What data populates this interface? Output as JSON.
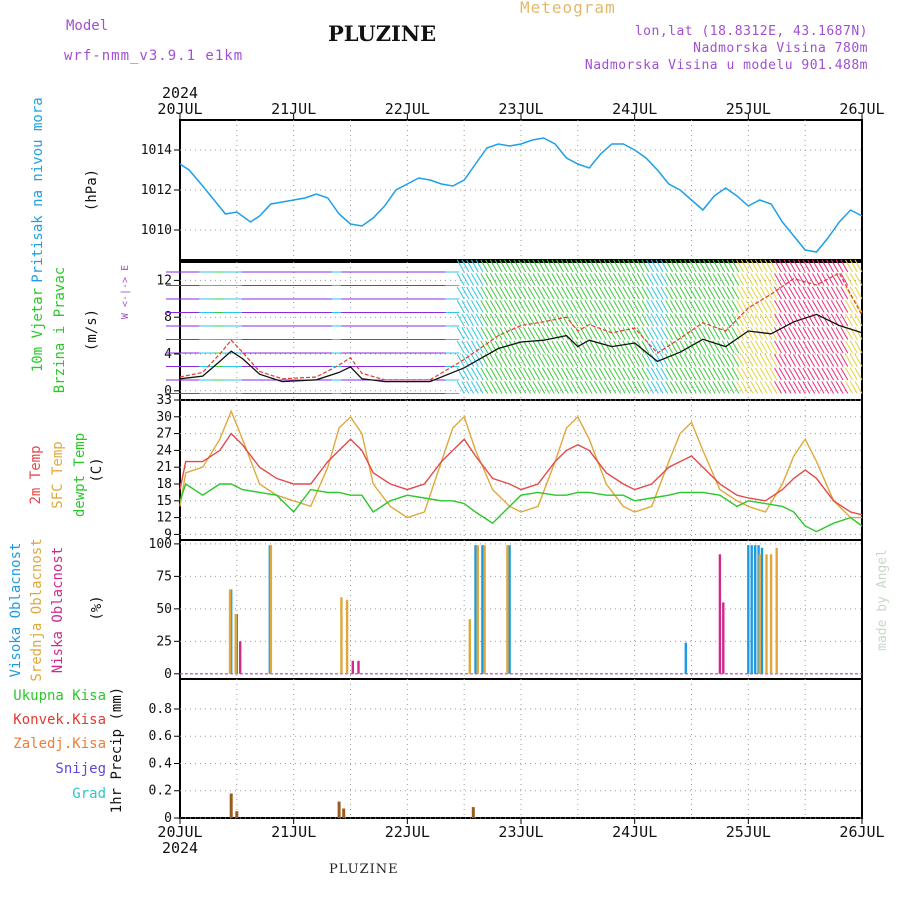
{
  "header": {
    "model_label": "Model",
    "model_name": "wrf-nmm_v3.9.1 e1km",
    "meteogram_title": "Meteogram",
    "station": "PLUZINE",
    "coords": "lon,lat (18.8312E, 43.1687N)",
    "elevation": "Nadmorska Visina 780m",
    "elevation_model": "Nadmorska Visina u modelu 901.488m"
  },
  "footer": {
    "station": "PLUZINE"
  },
  "credit": "made by Angel",
  "colors": {
    "pressure": "#1ea0e6",
    "wind_speed": "#111111",
    "gust": "#e5392f",
    "temp2m": "#e34a4a",
    "sfc_temp": "#e0a83c",
    "dewpoint": "#2ac82a",
    "cloud_high": "#1e9be0",
    "cloud_mid": "#e0a83c",
    "cloud_low": "#d02a8c",
    "precip_total": "#2ac82a",
    "precip_conv": "#e5392f",
    "precip_frozen": "#ee7d3a",
    "snow": "#5a48e0",
    "graupel": "#2ec7c7"
  },
  "x_axis": {
    "year": "2024",
    "ticks": [
      "20JUL",
      "21JUL",
      "22JUL",
      "23JUL",
      "24JUL",
      "25JUL",
      "26JUL"
    ]
  },
  "chart_data": [
    {
      "type": "line",
      "title": "",
      "ylabel": "Pritisak na nivou mora",
      "unit": "(hPa)",
      "ylim": [
        1008.5,
        1015.5
      ],
      "yticks": [
        1010,
        1012,
        1014
      ],
      "grid": true,
      "x_days": [
        0,
        0.08,
        0.2,
        0.3,
        0.4,
        0.5,
        0.62,
        0.7,
        0.8,
        0.9,
        1.0,
        1.1,
        1.2,
        1.3,
        1.4,
        1.5,
        1.6,
        1.7,
        1.8,
        1.9,
        2.0,
        2.1,
        2.2,
        2.3,
        2.4,
        2.5,
        2.6,
        2.7,
        2.8,
        2.9,
        3.0,
        3.1,
        3.2,
        3.3,
        3.4,
        3.5,
        3.6,
        3.7,
        3.8,
        3.9,
        4.0,
        4.1,
        4.2,
        4.3,
        4.4,
        4.5,
        4.6,
        4.7,
        4.8,
        4.9,
        5.0,
        5.1,
        5.2,
        5.3,
        5.4,
        5.5,
        5.6,
        5.7,
        5.8,
        5.9,
        6.0
      ],
      "series": [
        {
          "values": [
            1013.3,
            1013.0,
            1012.2,
            1011.5,
            1010.8,
            1010.9,
            1010.4,
            1010.7,
            1011.3,
            1011.4,
            1011.5,
            1011.6,
            1011.8,
            1011.6,
            1010.8,
            1010.3,
            1010.2,
            1010.6,
            1011.2,
            1012.0,
            1012.3,
            1012.6,
            1012.5,
            1012.3,
            1012.2,
            1012.5,
            1013.3,
            1014.1,
            1014.3,
            1014.2,
            1014.3,
            1014.5,
            1014.6,
            1014.3,
            1013.6,
            1013.3,
            1013.1,
            1013.8,
            1014.3,
            1014.3,
            1014.0,
            1013.6,
            1013.0,
            1012.3,
            1012.0,
            1011.5,
            1011.0,
            1011.7,
            1012.1,
            1011.7,
            1011.2,
            1011.5,
            1011.3,
            1010.4,
            1009.7,
            1009.0,
            1008.9,
            1009.6,
            1010.4,
            1011.0,
            1010.7
          ]
        }
      ]
    },
    {
      "type": "line",
      "title": "",
      "ylabel": "10m Vjetar Brzina i Pravac",
      "unit": "(m/s)",
      "ylim": [
        -1,
        14
      ],
      "yticks": [
        0,
        4,
        8,
        12
      ],
      "grid": true,
      "x_days": [
        0,
        0.2,
        0.35,
        0.45,
        0.55,
        0.7,
        0.9,
        1.2,
        1.4,
        1.5,
        1.6,
        1.8,
        2.2,
        2.5,
        2.8,
        3.0,
        3.2,
        3.4,
        3.5,
        3.6,
        3.8,
        4.0,
        4.2,
        4.4,
        4.6,
        4.8,
        5.0,
        5.2,
        5.4,
        5.6,
        5.8,
        6.0
      ],
      "series": [
        {
          "name": "",
          "values": [
            1.3,
            1.6,
            3.2,
            4.3,
            3.5,
            1.8,
            1.0,
            1.2,
            2.0,
            2.6,
            1.3,
            1.0,
            1.0,
            2.5,
            4.6,
            5.3,
            5.5,
            6.0,
            4.8,
            5.5,
            4.8,
            5.2,
            3.2,
            4.2,
            5.6,
            4.8,
            6.5,
            6.2,
            7.5,
            8.3,
            7.1,
            6.3
          ]
        },
        {
          "name": "",
          "values": [
            1.5,
            2.0,
            4.0,
            5.5,
            4.2,
            2.1,
            1.3,
            1.5,
            2.8,
            3.6,
            1.9,
            1.2,
            1.2,
            3.4,
            6.0,
            7.1,
            7.5,
            8.0,
            6.5,
            7.2,
            6.3,
            6.8,
            4.1,
            5.7,
            7.4,
            6.5,
            9.0,
            10.5,
            12.2,
            11.5,
            12.8,
            8.2
          ]
        }
      ]
    },
    {
      "type": "line",
      "title": "",
      "ylabel": "2m Temp / SFC Temp / dewpt Temp",
      "unit": "(C)",
      "ylim": [
        8,
        33
      ],
      "yticks": [
        9,
        12,
        15,
        18,
        21,
        24,
        27,
        30,
        33
      ],
      "grid": true,
      "x_days": [
        0,
        0.05,
        0.2,
        0.35,
        0.45,
        0.55,
        0.7,
        0.85,
        1.0,
        1.15,
        1.3,
        1.4,
        1.5,
        1.6,
        1.7,
        1.85,
        2.0,
        2.15,
        2.3,
        2.4,
        2.5,
        2.6,
        2.75,
        2.9,
        3.0,
        3.15,
        3.3,
        3.4,
        3.5,
        3.6,
        3.75,
        3.9,
        4.0,
        4.15,
        4.3,
        4.4,
        4.5,
        4.6,
        4.75,
        4.9,
        5.0,
        5.15,
        5.3,
        5.4,
        5.5,
        5.6,
        5.75,
        5.9,
        6.0
      ],
      "series": [
        {
          "name": "2m Temp",
          "values": [
            17,
            22,
            22,
            24,
            27,
            25,
            21,
            19,
            18,
            18,
            22,
            24,
            26,
            24,
            20,
            18,
            17,
            18,
            22,
            24,
            26,
            23,
            19,
            18,
            17,
            18,
            22,
            24,
            25,
            24,
            20,
            18,
            17,
            18,
            21,
            22,
            23,
            21,
            18,
            16,
            15.5,
            15,
            17,
            19,
            20.5,
            19,
            15,
            13,
            12.5
          ]
        },
        {
          "name": "SFC Temp",
          "values": [
            14,
            20,
            21,
            26,
            31,
            26,
            18,
            16,
            15,
            14,
            21,
            28,
            30,
            27,
            18,
            14,
            12,
            13,
            22,
            28,
            30,
            24,
            17,
            14,
            13,
            14,
            22,
            28,
            30,
            26,
            18,
            14,
            13,
            14,
            22,
            27,
            29,
            24,
            17,
            15,
            14,
            13,
            18,
            23,
            26,
            22,
            15,
            12,
            12
          ]
        },
        {
          "name": "dewpt Temp",
          "values": [
            15,
            18,
            16,
            18,
            18,
            17,
            16.5,
            16,
            13,
            17,
            16.5,
            16.5,
            16,
            16,
            13,
            15,
            16,
            15.5,
            15,
            15,
            14.5,
            13,
            11,
            14,
            16,
            16.5,
            16,
            16,
            16.5,
            16.5,
            16,
            16,
            15,
            15.5,
            16,
            16.5,
            16.5,
            16.5,
            16,
            14,
            15,
            14.5,
            14,
            13,
            10.5,
            9.5,
            11,
            12,
            10.5
          ]
        }
      ]
    },
    {
      "type": "bar",
      "title": "",
      "ylabel": "Visoka Oblacnost / Srednja Oblacnost / Niska Oblacnost",
      "unit": "(%)",
      "ylim": [
        -4,
        103
      ],
      "yticks": [
        0,
        25,
        50,
        75,
        100
      ],
      "grid": true,
      "series": [
        {
          "name": "Visoka Oblacnost",
          "x_days": [
            0.45,
            0.5,
            0.79,
            2.6,
            2.66,
            2.9,
            4.45,
            5.0,
            5.03,
            5.06,
            5.09,
            5.12
          ],
          "values": [
            65,
            46,
            99,
            99,
            99,
            99,
            24,
            99,
            99,
            99,
            99,
            97
          ]
        },
        {
          "name": "Srednja Oblacnost",
          "x_days": [
            0.44,
            0.49,
            0.8,
            1.42,
            1.47,
            2.55,
            2.62,
            2.68,
            2.88,
            5.1,
            5.16,
            5.2,
            5.25
          ],
          "values": [
            65,
            46,
            99,
            59,
            57,
            42,
            99,
            99,
            99,
            92,
            92,
            92,
            97
          ]
        },
        {
          "name": "Niska Oblacnost",
          "x_days": [
            0.53,
            1.52,
            1.57,
            4.75,
            4.78
          ],
          "values": [
            25,
            10,
            10,
            92,
            55
          ]
        }
      ]
    },
    {
      "type": "bar",
      "title": "",
      "ylabel": "1hr Precip",
      "unit": "(mm)",
      "ylim": [
        0,
        1.02
      ],
      "yticks": [
        0,
        0.2,
        0.4,
        0.6,
        0.8
      ],
      "grid": true,
      "legend": [
        "Ukupna Kisa",
        "Konvek.Kisa",
        "Zaledj.Kisa",
        "Snijeg",
        "Grad"
      ],
      "series": [
        {
          "name": "Ukupna Kisa",
          "x_days": [
            0.45,
            0.5,
            1.4,
            1.44,
            2.58
          ],
          "values": [
            0.18,
            0.05,
            0.12,
            0.07,
            0.08
          ]
        }
      ]
    }
  ],
  "panel_labels": {
    "pressure": {
      "label": "Pritisak na nivou mora",
      "unit": "(hPa)"
    },
    "wind": {
      "line1": "10m Vjetar",
      "line2": "Brzina i Pravac",
      "unit": "(m/s)",
      "compass": "W <-|-> E"
    },
    "temp": {
      "t2m": "2m Temp",
      "sfc": "SFC Temp",
      "dew": "dewpt Temp",
      "unit": "(C)"
    },
    "cloud": {
      "high": "Visoka Oblacnost",
      "mid": "Srednja Oblacnost",
      "low": "Niska Oblacnost",
      "unit": "(%)"
    },
    "precip": {
      "total": "Ukupna Kisa",
      "conv": "Konvek.Kisa",
      "frozen": "Zaledj.Kisa",
      "snow": "Snijeg",
      "graupel": "Grad",
      "unit": "1hr Precip (mm)"
    }
  }
}
